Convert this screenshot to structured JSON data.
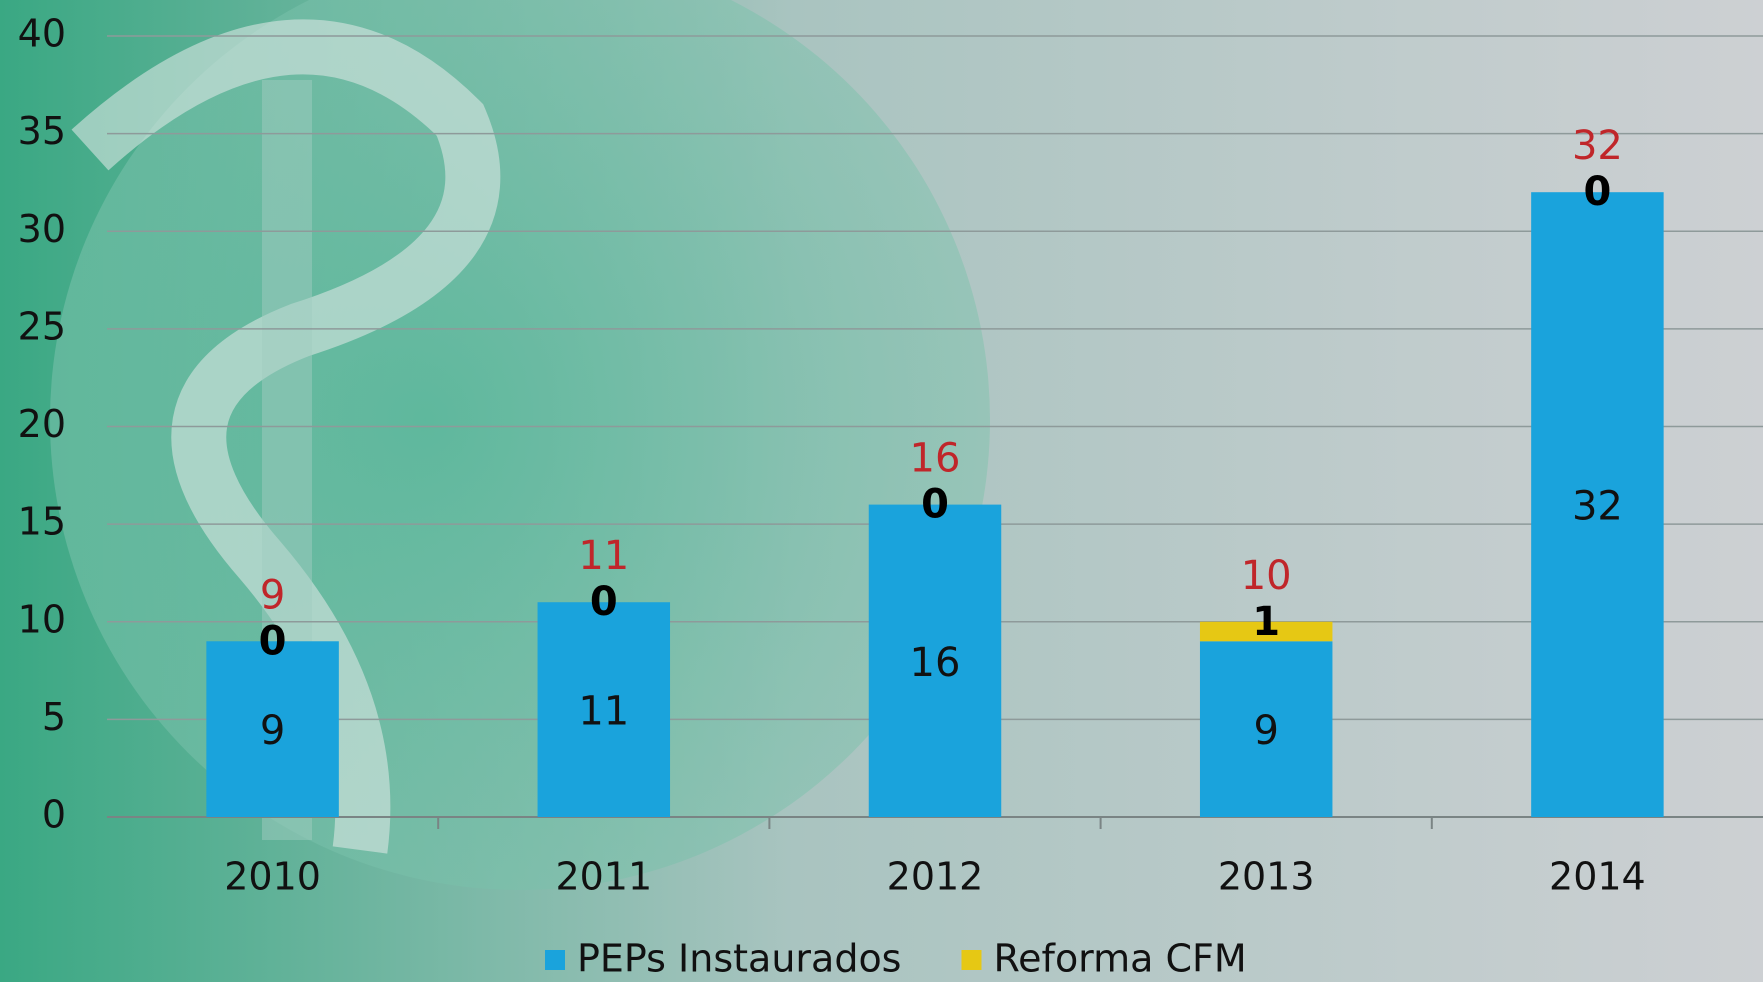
{
  "chart_data": {
    "type": "stacked-bar",
    "categories": [
      "2010",
      "2011",
      "2012",
      "2013",
      "2014"
    ],
    "series": [
      {
        "name": "PEPs Instaurados",
        "color": "#1aa3dc",
        "values": [
          9,
          11,
          16,
          9,
          32
        ]
      },
      {
        "name": "Reforma CFM",
        "color": "#e6c814",
        "values": [
          0,
          0,
          0,
          1,
          0
        ]
      }
    ],
    "totals": [
      9,
      11,
      16,
      10,
      32
    ],
    "ylim": [
      0,
      40
    ],
    "yticks": [
      0,
      5,
      10,
      15,
      20,
      25,
      30,
      35,
      40
    ],
    "grid": true,
    "legend": "bottom"
  }
}
